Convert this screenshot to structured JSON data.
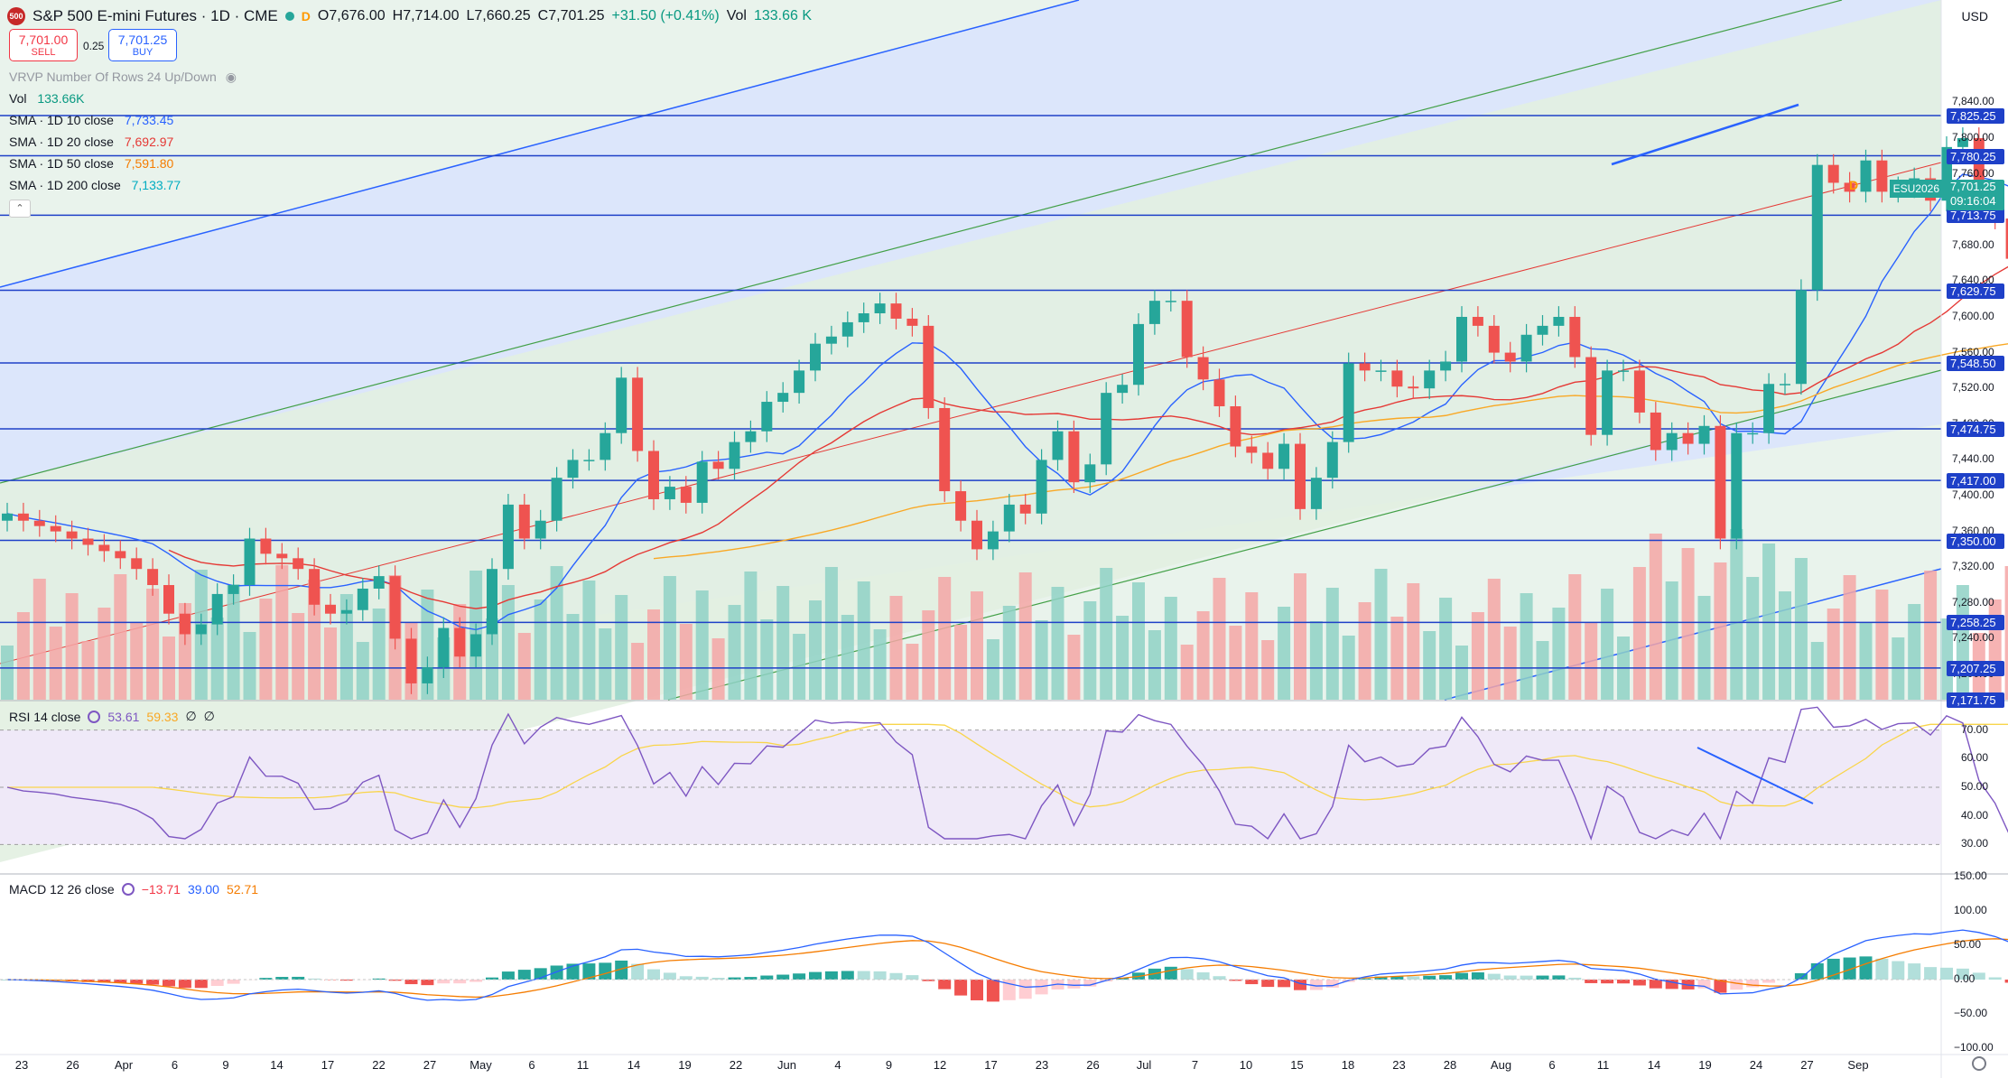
{
  "header": {
    "symbol_badge": "500",
    "title": "S&P 500 E-mini Futures · 1D · CME",
    "d_label": "D",
    "open": "O7,676.00",
    "high": "H7,714.00",
    "low": "L7,660.25",
    "close": "C7,701.25",
    "change": "+31.50 (+0.41%)",
    "vol": "Vol",
    "vol_value": "133.66 K"
  },
  "trade": {
    "sell_price": "7,701.00",
    "sell_label": "SELL",
    "spread": "0.25",
    "buy_price": "7,701.25",
    "buy_label": "BUY"
  },
  "legend": {
    "vrvp": "VRVP Number Of Rows 24 Up/Down",
    "vol": "Vol",
    "vol_value": "133.66K",
    "sma10": "SMA · 1D 10 close",
    "sma10_value": "7,733.45",
    "sma20": "SMA · 1D 20 close",
    "sma20_value": "7,692.97",
    "sma50": "SMA · 1D 50 close",
    "sma50_value": "7,591.80",
    "sma200": "SMA · 1D 200 close",
    "sma200_value": "7,133.77"
  },
  "currency": "USD",
  "price_scale": {
    "ticks": [
      "7,840.00",
      "7,800.00",
      "7,760.00",
      "7,720.00",
      "7,680.00",
      "7,640.00",
      "7,600.00",
      "7,560.00",
      "7,520.00",
      "7,480.00",
      "7,440.00",
      "7,400.00",
      "7,360.00",
      "7,320.00",
      "7,280.00",
      "7,240.00",
      "7,200.00"
    ],
    "line_labels": [
      "7,825.25",
      "7,780.25",
      "7,713.75",
      "7,629.75",
      "7,548.50",
      "7,474.75",
      "7,417.00",
      "7,350.00",
      "7,258.25",
      "7,207.25",
      "7,171.75"
    ],
    "current": "7,701.25",
    "countdown": "09:16:04",
    "symbol_tag": "ESU2026"
  },
  "rsi": {
    "label": "RSI 14 close",
    "value1": "53.61",
    "value2": "59.33",
    "extra1": "∅",
    "extra2": "∅",
    "ticks": [
      "70.00",
      "60.00",
      "50.00",
      "40.00",
      "30.00"
    ]
  },
  "macd": {
    "label": "MACD 12 26 close",
    "value1": "−13.71",
    "value2": "39.00",
    "value3": "52.71",
    "ticks": [
      "150.00",
      "100.00",
      "50.00",
      "0.00",
      "−50.00",
      "−100.00"
    ]
  },
  "time_axis": [
    "23",
    "26",
    "Apr",
    "6",
    "9",
    "14",
    "17",
    "22",
    "27",
    "May",
    "6",
    "11",
    "14",
    "19",
    "22",
    "Jun",
    "4",
    "9",
    "12",
    "17",
    "23",
    "26",
    "Jul",
    "7",
    "10",
    "15",
    "18",
    "23",
    "28",
    "Aug",
    "6",
    "11",
    "14",
    "19",
    "24",
    "27",
    "Sep"
  ],
  "colors": {
    "up": "#26a69a",
    "down": "#ef5350",
    "sma10": "#2962ff",
    "sma20": "#e53935",
    "sma50": "#f9a825",
    "hline": "#1e40c8"
  },
  "chart_data": {
    "type": "candlestick",
    "title": "S&P 500 E-mini Futures · 1D · CME",
    "ylim": [
      7171.75,
      7860
    ],
    "horizontal_levels": [
      7825.25,
      7780.25,
      7713.75,
      7629.75,
      7548.5,
      7474.75,
      7417,
      7350,
      7258.25,
      7207.25
    ],
    "last_candle": {
      "open": 7676.0,
      "high": 7714.0,
      "low": 7660.25,
      "close": 7701.25,
      "volume": "133.66K"
    },
    "closes": [
      7380,
      7372,
      7366,
      7360,
      7352,
      7345,
      7338,
      7330,
      7318,
      7300,
      7268,
      7245,
      7256,
      7290,
      7300,
      7352,
      7335,
      7330,
      7318,
      7278,
      7268,
      7272,
      7296,
      7310,
      7240,
      7190,
      7208,
      7252,
      7220,
      7245,
      7318,
      7390,
      7352,
      7372,
      7420,
      7440,
      7440,
      7470,
      7532,
      7450,
      7396,
      7410,
      7392,
      7438,
      7430,
      7460,
      7472,
      7505,
      7515,
      7540,
      7570,
      7578,
      7594,
      7604,
      7615,
      7598,
      7590,
      7498,
      7405,
      7372,
      7340,
      7360,
      7390,
      7380,
      7440,
      7472,
      7415,
      7435,
      7515,
      7524,
      7592,
      7618,
      7618,
      7555,
      7530,
      7500,
      7455,
      7448,
      7430,
      7458,
      7385,
      7420,
      7460,
      7548,
      7540,
      7540,
      7522,
      7520,
      7540,
      7550,
      7600,
      7590,
      7560,
      7550,
      7580,
      7590,
      7600,
      7555,
      7468,
      7540,
      7540,
      7493,
      7451,
      7470,
      7458,
      7478,
      7352,
      7470,
      7470,
      7525,
      7525,
      7630,
      7770,
      7750,
      7740,
      7775,
      7740,
      7745,
      7755,
      7730,
      7790,
      7800,
      7740,
      7710,
      7665,
      7685,
      7638,
      7675,
      7696,
      7701
    ]
  }
}
